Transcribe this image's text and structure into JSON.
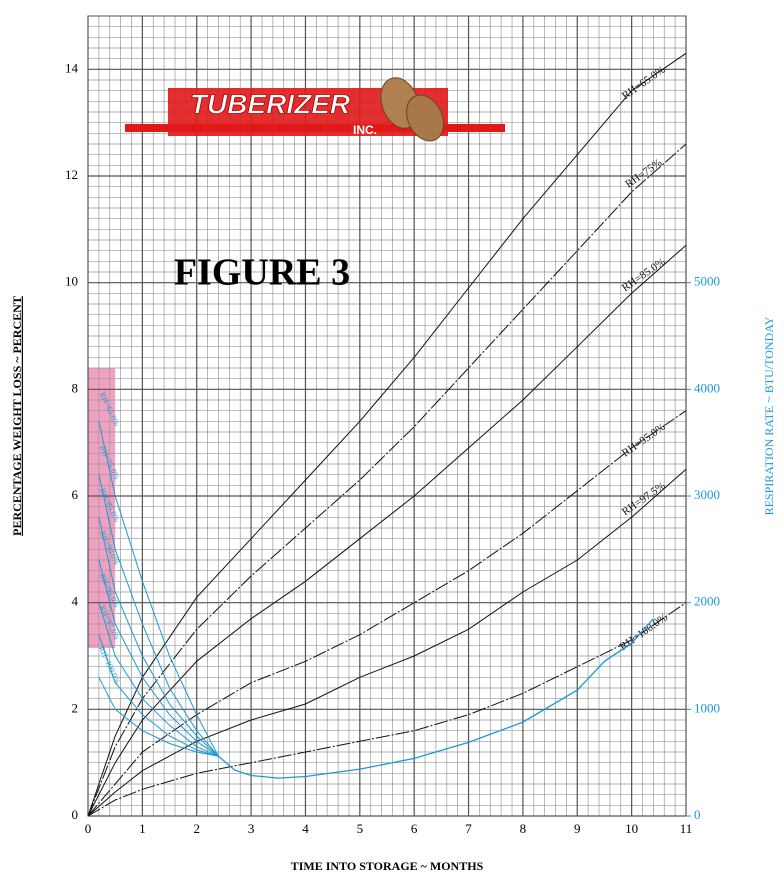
{
  "chart_data": {
    "type": "line",
    "title": "FIGURE 3",
    "logo": {
      "name": "TUBERIZER",
      "suffix": "INC."
    },
    "xlabel": "TIME INTO STORAGE ~ MONTHS",
    "ylabel": "PERCENTAGE WEIGHT LOSS ~ PERCENT",
    "y2label": "RESPIRATION RATE ~ BTU/TONDAY",
    "xlim": [
      0,
      11
    ],
    "xticks": [
      0,
      1,
      2,
      3,
      4,
      5,
      6,
      7,
      8,
      9,
      10,
      11
    ],
    "ylim": [
      0,
      15
    ],
    "yticks": [
      0,
      2,
      4,
      6,
      8,
      10,
      12,
      14
    ],
    "y2lim": [
      0,
      7500
    ],
    "y2ticks": [
      0,
      1000,
      2000,
      3000,
      4000,
      5000
    ],
    "minor_step": {
      "x": 0.2,
      "y": 0.2
    },
    "grid": true,
    "x": [
      0,
      0.5,
      1,
      2,
      3,
      4,
      5,
      6,
      7,
      8,
      9,
      10,
      11
    ],
    "series": [
      {
        "name": "RH=65.0%",
        "color": "#111111",
        "values": [
          0,
          1.5,
          2.6,
          4.1,
          5.2,
          6.3,
          7.4,
          8.6,
          9.9,
          11.2,
          12.4,
          13.6,
          14.3
        ]
      },
      {
        "name": "RH=75%",
        "color": "#111111",
        "values": [
          0,
          1.3,
          2.2,
          3.5,
          4.5,
          5.4,
          6.3,
          7.3,
          8.4,
          9.5,
          10.6,
          11.7,
          12.6
        ]
      },
      {
        "name": "RH=85.0%",
        "color": "#111111",
        "values": [
          0,
          1.0,
          1.8,
          2.9,
          3.7,
          4.4,
          5.2,
          6.0,
          6.9,
          7.8,
          8.8,
          9.8,
          10.7
        ]
      },
      {
        "name": "RH=95.0%",
        "color": "#111111",
        "values": [
          0,
          0.6,
          1.2,
          1.9,
          2.5,
          2.9,
          3.4,
          4.0,
          4.6,
          5.3,
          6.1,
          6.9,
          7.6
        ]
      },
      {
        "name": "RH=97.5%",
        "color": "#111111",
        "values": [
          0,
          0.45,
          0.85,
          1.4,
          1.8,
          2.1,
          2.6,
          3.0,
          3.5,
          4.2,
          4.8,
          5.6,
          6.5
        ]
      },
      {
        "name": "RH=100.0%",
        "color": "#111111",
        "values": [
          0,
          0.3,
          0.5,
          0.8,
          1.0,
          1.2,
          1.4,
          1.6,
          1.9,
          2.3,
          2.8,
          3.3,
          4.0
        ]
      }
    ],
    "respiration": {
      "color": "#1a9ad6",
      "x": [
        2.4,
        2.7,
        3,
        3.5,
        4,
        5,
        6,
        7,
        8,
        9,
        9.5,
        10,
        10.4
      ],
      "values": [
        560,
        430,
        380,
        355,
        370,
        440,
        540,
        690,
        880,
        1180,
        1450,
        1620,
        1850
      ]
    },
    "shaded_region": {
      "color": "#f0a0c0",
      "xlim": [
        0,
        0.5
      ],
      "y2lim": [
        1575,
        4200
      ]
    },
    "respiration_x": [
      0.2,
      0.5,
      1,
      1.5,
      2,
      2.4
    ],
    "respiration_series": [
      {
        "name": "RH=65.0%",
        "values": [
          3700,
          3000,
          2200,
          1500,
          950,
          560
        ]
      },
      {
        "name": "RH=75.0%",
        "values": [
          3200,
          2500,
          1800,
          1200,
          800,
          560
        ]
      },
      {
        "name": "RH=85.0%",
        "values": [
          2800,
          2100,
          1500,
          1050,
          750,
          560
        ]
      },
      {
        "name": "RH=90.0%",
        "values": [
          2400,
          1800,
          1300,
          950,
          700,
          560
        ]
      },
      {
        "name": "RH=95.0%",
        "values": [
          2000,
          1500,
          1100,
          850,
          650,
          560
        ]
      },
      {
        "name": "RH=97.5%",
        "values": [
          1700,
          1250,
          950,
          750,
          620,
          560
        ]
      },
      {
        "name": "RH=100.0%",
        "values": [
          1300,
          1000,
          800,
          680,
          600,
          560
        ]
      }
    ]
  }
}
